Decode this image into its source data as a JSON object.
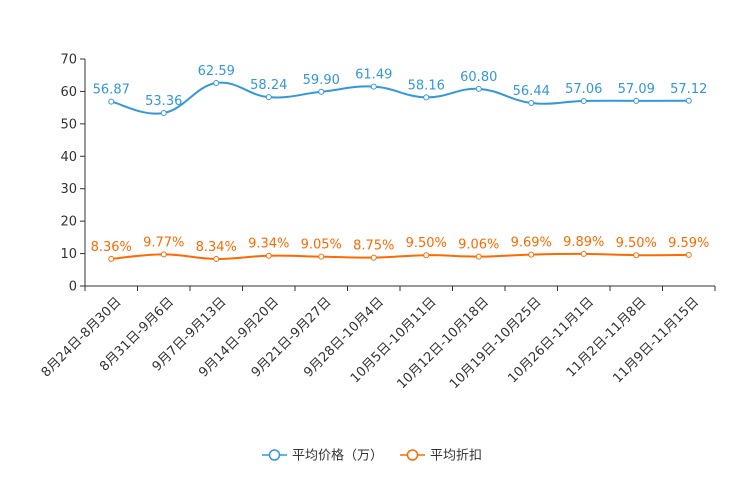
{
  "chart_data": {
    "type": "line",
    "title": "",
    "xlabel": "",
    "ylabel": "",
    "ylim": [
      0,
      70
    ],
    "yticks": [
      "0",
      "10",
      "20",
      "30",
      "40",
      "50",
      "60",
      "70"
    ],
    "categories": [
      "8月24日-8月30日",
      "8月31日-9月6日",
      "9月7日-9月13日",
      "9月14日-9月20日",
      "9月21日-9月27日",
      "9月28日-10月4日",
      "10月5日-10月11日",
      "10月12日-10月18日",
      "10月19日-10月25日",
      "10月26日-11月1日",
      "11月2日-11月8日",
      "11月9日-11月15日"
    ],
    "series": [
      {
        "name": "平均价格（万）",
        "color": "#3398DB",
        "values": [
          56.87,
          53.36,
          62.59,
          58.24,
          59.9,
          61.49,
          58.16,
          60.8,
          56.44,
          57.06,
          57.09,
          57.12
        ],
        "labels": [
          "56.87",
          "53.36",
          "62.59",
          "58.24",
          "59.90",
          "61.49",
          "58.16",
          "60.80",
          "56.44",
          "57.06",
          "57.09",
          "57.12"
        ]
      },
      {
        "name": "平均折扣",
        "color": "#FF6A00",
        "values": [
          8.36,
          9.77,
          8.34,
          9.34,
          9.05,
          8.75,
          9.5,
          9.06,
          9.69,
          9.89,
          9.5,
          9.59
        ],
        "labels": [
          "8.36%",
          "9.77%",
          "8.34%",
          "9.34%",
          "9.05%",
          "8.75%",
          "9.50%",
          "9.06%",
          "9.69%",
          "9.89%",
          "9.50%",
          "9.59%"
        ]
      }
    ],
    "legend": "bottom-center",
    "grid": false
  }
}
